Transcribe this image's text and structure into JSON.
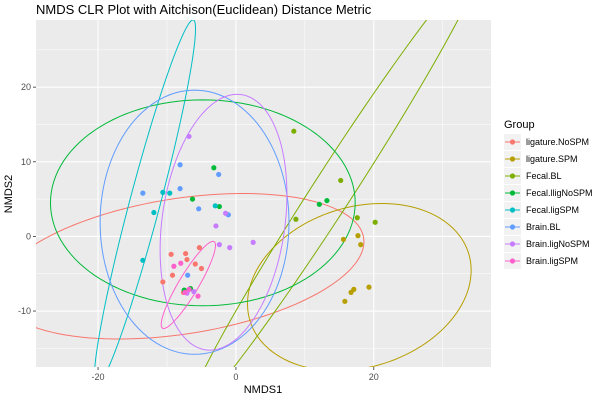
{
  "chart_data": {
    "type": "scatter",
    "title": "NMDS CLR Plot with Aitchison(Euclidean) Distance Metric",
    "xlabel": "NMDS1",
    "ylabel": "NMDS2",
    "xlim": [
      -29,
      37
    ],
    "ylim": [
      -17.5,
      29
    ],
    "xticks": [
      -20,
      0,
      20
    ],
    "xtick_labels": [
      "-20",
      "0",
      "20"
    ],
    "yticks": [
      -10,
      0,
      10,
      20
    ],
    "ytick_labels": [
      "-10",
      "0",
      "10",
      "20"
    ],
    "grid": true,
    "legend_title": "Group",
    "legend_position": "right",
    "series": [
      {
        "name": "ligature.NoSPM",
        "color": "#F8766D",
        "points": [
          [
            -10.6,
            -6.1
          ],
          [
            -5.9,
            -3.7
          ],
          [
            -9.2,
            -5.2
          ],
          [
            -5.3,
            -1.5
          ],
          [
            -7.3,
            -2.3
          ],
          [
            -5.0,
            -4.3
          ],
          [
            -6.6,
            -7.0
          ],
          [
            -7.6,
            -7.5
          ],
          [
            -9.4,
            -2.4
          ],
          [
            -7.1,
            -3.1
          ]
        ],
        "ellipse": {
          "center": [
            -8,
            -4
          ],
          "a": 26.8,
          "b": 9.1,
          "angle": 8
        }
      },
      {
        "name": "ligature.SPM",
        "color": "#B79F00",
        "points": [
          [
            15.6,
            -0.4
          ],
          [
            17.7,
            0.1
          ],
          [
            18.1,
            -1.1
          ],
          [
            17.1,
            -7.1
          ],
          [
            16.7,
            -7.5
          ],
          [
            19.3,
            -6.8
          ],
          [
            15.8,
            -8.7
          ]
        ],
        "ellipse": {
          "center": [
            17.9,
            -6.8
          ],
          "a": 10.8,
          "b": 16.5,
          "angle": 104
        }
      },
      {
        "name": "Fecal.BL",
        "color": "#7CAE00",
        "points": [
          [
            8.4,
            14.1
          ],
          [
            15.2,
            7.5
          ],
          [
            17.6,
            2.5
          ],
          [
            20.2,
            1.9
          ],
          [
            8.7,
            2.3
          ]
        ],
        "ellipse": {
          "center": [
            14.3,
            6.5
          ],
          "a": 36.9,
          "b": 2.8,
          "angle": 55
        }
      },
      {
        "name": "Fecal.lligNoSPM",
        "color": "#00BA38",
        "points": [
          [
            -6.6,
            -7.0
          ],
          [
            -3.2,
            9.2
          ],
          [
            -2.4,
            4.0
          ],
          [
            -6.3,
            5.0
          ],
          [
            12.1,
            4.3
          ],
          [
            13.2,
            4.8
          ],
          [
            -7.5,
            -7.2
          ]
        ],
        "ellipse": {
          "center": [
            -4.8,
            4.5
          ],
          "a": 22.1,
          "b": 13.8,
          "angle": 0
        }
      },
      {
        "name": "Fecal.ligSPM",
        "color": "#00BFC4",
        "points": [
          [
            -9.6,
            5.8
          ],
          [
            -11.9,
            3.2
          ],
          [
            -13.5,
            -3.2
          ],
          [
            -10.6,
            5.9
          ],
          [
            -3.0,
            4.1
          ]
        ],
        "ellipse": {
          "center": [
            -13.2,
            4.5
          ],
          "a": 25.5,
          "b": 2.2,
          "angle": 74
        }
      },
      {
        "name": "Brain.BL",
        "color": "#619CFF",
        "points": [
          [
            -13.5,
            5.8
          ],
          [
            -8.1,
            9.6
          ],
          [
            -8.1,
            6.4
          ],
          [
            -2.5,
            8.3
          ],
          [
            -5.4,
            3.7
          ],
          [
            -1.1,
            2.9
          ],
          [
            -7.0,
            -5.2
          ]
        ],
        "ellipse": {
          "center": [
            -6.0,
            1.9
          ],
          "a": 17.7,
          "b": 13.7,
          "angle": 90
        }
      },
      {
        "name": "Brain.ligNoSPM",
        "color": "#C77CFF",
        "points": [
          [
            -6.8,
            13.4
          ],
          [
            -1.5,
            3.1
          ],
          [
            -2.9,
            1.4
          ],
          [
            -2.4,
            -1.1
          ],
          [
            -0.9,
            -1.5
          ],
          [
            2.5,
            -0.8
          ],
          [
            -6.1,
            -7.4
          ],
          [
            -7.1,
            -7.6
          ]
        ],
        "ellipse": {
          "center": [
            -1.8,
            1.9
          ],
          "a": 17.3,
          "b": 8.9,
          "angle": 81
        }
      },
      {
        "name": "Brain.ligSPM",
        "color": "#FF61CC",
        "points": [
          [
            -9.0,
            -4.0
          ],
          [
            -7.4,
            -7.5
          ],
          [
            -6.8,
            -7.1
          ],
          [
            -5.5,
            -8.0
          ],
          [
            -8.0,
            -3.6
          ]
        ],
        "ellipse": {
          "center": [
            -6.9,
            -6.5
          ],
          "a": 6.9,
          "b": 1.4,
          "angle": 57
        }
      }
    ]
  }
}
